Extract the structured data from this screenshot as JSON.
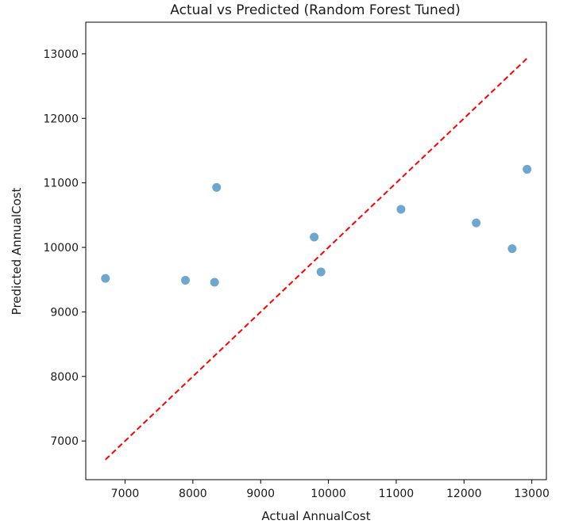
{
  "chart_data": {
    "type": "scatter",
    "title": "Actual vs Predicted (Random Forest Tuned)",
    "xlabel": "Actual AnnualCost",
    "ylabel": "Predicted AnnualCost",
    "xlim": [
      6420,
      13215
    ],
    "ylim": [
      6400,
      13490
    ],
    "xticks": [
      7000,
      8000,
      9000,
      10000,
      11000,
      12000,
      13000
    ],
    "yticks": [
      7000,
      8000,
      9000,
      10000,
      11000,
      12000,
      13000
    ],
    "grid": false,
    "legend": "none",
    "series": [
      {
        "color": "#1f77b4",
        "x": [
          6710,
          7890,
          8320,
          8350,
          9790,
          9890,
          11070,
          12180,
          12710,
          12930
        ],
        "y": [
          9520,
          9490,
          9460,
          10930,
          10160,
          9620,
          10590,
          10380,
          9980,
          11210
        ]
      }
    ],
    "reference_line": {
      "color": "#ff0000",
      "style": "dashed",
      "from": [
        6710,
        6710
      ],
      "to": [
        12930,
        12930
      ]
    }
  }
}
